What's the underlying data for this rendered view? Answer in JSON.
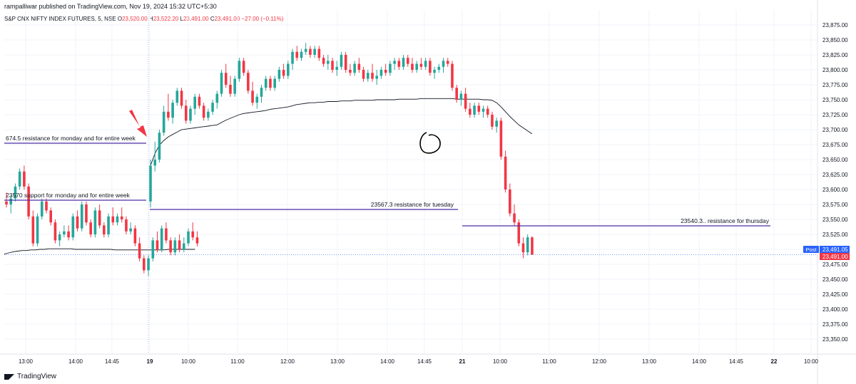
{
  "header": {
    "published": "rampalliwar published on TradingView.com, Nov 19, 2024 15:32 UTC+5:30"
  },
  "legend": {
    "symbol": "S&P CNX NIFTY INDEX FUTURES, 5, NSE",
    "o_label": "O",
    "o": "23,520.00",
    "h_label": "H",
    "h": "23,522.20",
    "l_label": "L",
    "l": "23,491.00",
    "c_label": "C",
    "c": "23,491.00",
    "change": "−27.00 (−0.11%)"
  },
  "branding": {
    "name": "TradingView",
    "icon": "tradingview-logo-icon"
  },
  "colors": {
    "up": "#26a69a",
    "down": "#f23645",
    "annotation": "#4a2ea8",
    "vwap": "#131722",
    "price_tag": "#f23645",
    "post_tag": "#2962ff"
  },
  "chart_data": {
    "type": "candlestick",
    "ylim": [
      23325,
      23900
    ],
    "y_ticks": [
      "23,350.00",
      "23,375.00",
      "23,400.00",
      "23,425.00",
      "23,450.00",
      "23,475.00",
      "23,500.00",
      "23,525.00",
      "23,550.00",
      "23,575.00",
      "23,600.00",
      "23,625.00",
      "23,650.00",
      "23,675.00",
      "23,700.00",
      "23,725.00",
      "23,750.00",
      "23,775.00",
      "23,800.00",
      "23,825.00",
      "23,850.00",
      "23,875.00"
    ],
    "x_ticks": [
      "13:00",
      "14:00",
      "14:45",
      "19",
      "10:00",
      "11:00",
      "12:00",
      "13:00",
      "14:00",
      "14:45",
      "21",
      "10:00",
      "11:00",
      "12:00",
      "13:00",
      "14:00",
      "14:45",
      "22",
      "10:00"
    ],
    "session_prev": [
      [
        23580,
        23595,
        23570,
        23575
      ],
      [
        23575,
        23590,
        23560,
        23585
      ],
      [
        23585,
        23610,
        23580,
        23605
      ],
      [
        23605,
        23635,
        23600,
        23630
      ],
      [
        23630,
        23640,
        23600,
        23605
      ],
      [
        23605,
        23610,
        23550,
        23555
      ],
      [
        23555,
        23565,
        23505,
        23510
      ],
      [
        23510,
        23560,
        23505,
        23555
      ],
      [
        23555,
        23585,
        23550,
        23580
      ],
      [
        23580,
        23585,
        23560,
        23565
      ],
      [
        23565,
        23570,
        23540,
        23545
      ],
      [
        23545,
        23550,
        23510,
        23515
      ],
      [
        23515,
        23530,
        23505,
        23525
      ],
      [
        23525,
        23540,
        23520,
        23530
      ],
      [
        23530,
        23540,
        23515,
        23520
      ],
      [
        23520,
        23560,
        23515,
        23555
      ],
      [
        23555,
        23565,
        23530,
        23535
      ],
      [
        23535,
        23580,
        23530,
        23575
      ],
      [
        23575,
        23580,
        23540,
        23545
      ],
      [
        23545,
        23550,
        23520,
        23525
      ],
      [
        23525,
        23570,
        23520,
        23565
      ],
      [
        23565,
        23575,
        23535,
        23540
      ],
      [
        23540,
        23545,
        23520,
        23525
      ],
      [
        23525,
        23560,
        23520,
        23555
      ],
      [
        23555,
        23570,
        23540,
        23545
      ],
      [
        23545,
        23560,
        23540,
        23555
      ],
      [
        23555,
        23570,
        23545,
        23550
      ],
      [
        23550,
        23555,
        23525,
        23530
      ],
      [
        23530,
        23545,
        23525,
        23535
      ],
      [
        23535,
        23540,
        23505,
        23510
      ],
      [
        23510,
        23520,
        23480,
        23485
      ],
      [
        23485,
        23490,
        23460,
        23465
      ],
      [
        23465,
        23490,
        23455,
        23485
      ],
      [
        23485,
        23520,
        23480,
        23515
      ],
      [
        23515,
        23530,
        23495,
        23500
      ],
      [
        23500,
        23540,
        23495,
        23535
      ],
      [
        23535,
        23545,
        23510,
        23515
      ],
      [
        23515,
        23520,
        23490,
        23495
      ],
      [
        23495,
        23520,
        23490,
        23515
      ],
      [
        23515,
        23525,
        23495,
        23500
      ],
      [
        23500,
        23520,
        23495,
        23510
      ],
      [
        23510,
        23535,
        23505,
        23530
      ],
      [
        23530,
        23545,
        23515,
        23520
      ],
      [
        23520,
        23530,
        23505,
        23510
      ]
    ],
    "session_day": [
      [
        23580,
        23650,
        23570,
        23640
      ],
      [
        23640,
        23680,
        23630,
        23650
      ],
      [
        23650,
        23700,
        23645,
        23695
      ],
      [
        23695,
        23740,
        23690,
        23730
      ],
      [
        23730,
        23760,
        23715,
        23720
      ],
      [
        23720,
        23750,
        23710,
        23745
      ],
      [
        23745,
        23770,
        23740,
        23765
      ],
      [
        23765,
        23770,
        23735,
        23740
      ],
      [
        23740,
        23750,
        23710,
        23715
      ],
      [
        23715,
        23740,
        23710,
        23735
      ],
      [
        23735,
        23760,
        23725,
        23755
      ],
      [
        23755,
        23760,
        23735,
        23740
      ],
      [
        23740,
        23745,
        23715,
        23720
      ],
      [
        23720,
        23735,
        23715,
        23730
      ],
      [
        23730,
        23750,
        23725,
        23745
      ],
      [
        23745,
        23765,
        23735,
        23760
      ],
      [
        23760,
        23800,
        23755,
        23795
      ],
      [
        23795,
        23810,
        23770,
        23775
      ],
      [
        23775,
        23790,
        23755,
        23760
      ],
      [
        23760,
        23790,
        23755,
        23785
      ],
      [
        23785,
        23820,
        23780,
        23815
      ],
      [
        23815,
        23820,
        23790,
        23795
      ],
      [
        23795,
        23800,
        23760,
        23765
      ],
      [
        23765,
        23780,
        23740,
        23745
      ],
      [
        23745,
        23760,
        23735,
        23755
      ],
      [
        23755,
        23775,
        23745,
        23770
      ],
      [
        23770,
        23790,
        23765,
        23785
      ],
      [
        23785,
        23790,
        23765,
        23770
      ],
      [
        23770,
        23790,
        23765,
        23785
      ],
      [
        23785,
        23805,
        23780,
        23800
      ],
      [
        23800,
        23810,
        23785,
        23790
      ],
      [
        23790,
        23815,
        23785,
        23810
      ],
      [
        23810,
        23835,
        23800,
        23830
      ],
      [
        23830,
        23840,
        23815,
        23820
      ],
      [
        23820,
        23835,
        23815,
        23830
      ],
      [
        23830,
        23845,
        23825,
        23835
      ],
      [
        23835,
        23840,
        23820,
        23825
      ],
      [
        23825,
        23840,
        23820,
        23835
      ],
      [
        23835,
        23840,
        23815,
        23820
      ],
      [
        23820,
        23825,
        23805,
        23810
      ],
      [
        23810,
        23825,
        23800,
        23815
      ],
      [
        23815,
        23820,
        23795,
        23800
      ],
      [
        23800,
        23815,
        23790,
        23805
      ],
      [
        23805,
        23830,
        23800,
        23825
      ],
      [
        23825,
        23830,
        23795,
        23800
      ],
      [
        23800,
        23810,
        23790,
        23795
      ],
      [
        23795,
        23815,
        23790,
        23810
      ],
      [
        23810,
        23820,
        23795,
        23800
      ],
      [
        23800,
        23805,
        23780,
        23785
      ],
      [
        23785,
        23800,
        23780,
        23795
      ],
      [
        23795,
        23810,
        23780,
        23785
      ],
      [
        23785,
        23800,
        23775,
        23790
      ],
      [
        23790,
        23805,
        23785,
        23800
      ],
      [
        23800,
        23810,
        23790,
        23795
      ],
      [
        23795,
        23815,
        23790,
        23810
      ],
      [
        23810,
        23820,
        23800,
        23815
      ],
      [
        23815,
        23820,
        23800,
        23805
      ],
      [
        23805,
        23825,
        23800,
        23820
      ],
      [
        23820,
        23825,
        23805,
        23810
      ],
      [
        23810,
        23820,
        23795,
        23800
      ],
      [
        23800,
        23815,
        23795,
        23810
      ],
      [
        23810,
        23820,
        23800,
        23805
      ],
      [
        23805,
        23820,
        23800,
        23815
      ],
      [
        23815,
        23820,
        23790,
        23795
      ],
      [
        23795,
        23805,
        23785,
        23800
      ],
      [
        23800,
        23810,
        23795,
        23805
      ],
      [
        23805,
        23820,
        23795,
        23815
      ],
      [
        23815,
        23820,
        23805,
        23810
      ],
      [
        23810,
        23815,
        23765,
        23770
      ],
      [
        23770,
        23775,
        23745,
        23750
      ],
      [
        23750,
        23765,
        23740,
        23760
      ],
      [
        23760,
        23770,
        23730,
        23735
      ],
      [
        23735,
        23745,
        23720,
        23725
      ],
      [
        23725,
        23745,
        23720,
        23740
      ],
      [
        23740,
        23745,
        23725,
        23730
      ],
      [
        23730,
        23740,
        23720,
        23735
      ],
      [
        23735,
        23740,
        23720,
        23725
      ],
      [
        23725,
        23730,
        23700,
        23705
      ],
      [
        23705,
        23720,
        23695,
        23715
      ],
      [
        23715,
        23720,
        23650,
        23655
      ],
      [
        23655,
        23665,
        23595,
        23600
      ],
      [
        23600,
        23610,
        23555,
        23560
      ],
      [
        23560,
        23575,
        23540,
        23545
      ],
      [
        23545,
        23550,
        23505,
        23510
      ],
      [
        23510,
        23520,
        23485,
        23495
      ],
      [
        23495,
        23525,
        23490,
        23520
      ],
      [
        23520,
        23522,
        23491,
        23491
      ]
    ],
    "vwap_prev": [
      23492,
      23494,
      23496,
      23497,
      23498,
      23498,
      23499,
      23499,
      23500,
      23500,
      23501,
      23501,
      23501,
      23501,
      23501,
      23501,
      23500,
      23500,
      23500,
      23500,
      23500,
      23500,
      23500,
      23500,
      23500,
      23499,
      23499,
      23499,
      23499,
      23499,
      23499,
      23499,
      23499,
      23499,
      23499,
      23499,
      23499,
      23500,
      23500,
      23500,
      23500,
      23500,
      23500,
      23500
    ],
    "vwap_day": [
      23640,
      23660,
      23674,
      23682,
      23688,
      23692,
      23696,
      23700,
      23701,
      23702,
      23703,
      23704,
      23705,
      23706,
      23707,
      23708,
      23712,
      23716,
      23719,
      23722,
      23725,
      23727,
      23728,
      23729,
      23730,
      23731,
      23732,
      23734,
      23735,
      23736,
      23737,
      23738,
      23740,
      23742,
      23743,
      23744,
      23745,
      23745,
      23746,
      23746,
      23747,
      23747,
      23747,
      23748,
      23748,
      23748,
      23749,
      23749,
      23749,
      23749,
      23749,
      23750,
      23750,
      23750,
      23750,
      23750,
      23751,
      23751,
      23751,
      23751,
      23751,
      23752,
      23752,
      23752,
      23752,
      23752,
      23752,
      23752,
      23752,
      23751,
      23751,
      23751,
      23751,
      23751,
      23751,
      23750,
      23750,
      23749,
      23745,
      23738,
      23730,
      23722,
      23715,
      23708,
      23703,
      23698,
      23693
    ],
    "current_price": 23491.0,
    "annotations": {
      "res_week": "674.5 resistance for monday and for entire week",
      "sup_week": "…70 support for monday and for entire week",
      "sup_week_prefix": "235",
      "res_tue": "23567.3 resistance for tuesday",
      "res_thu": "23540.3.. resistance for thursday",
      "post_label": "Post",
      "post_price": "23,491.05",
      "last_price": "23,491.00"
    }
  }
}
